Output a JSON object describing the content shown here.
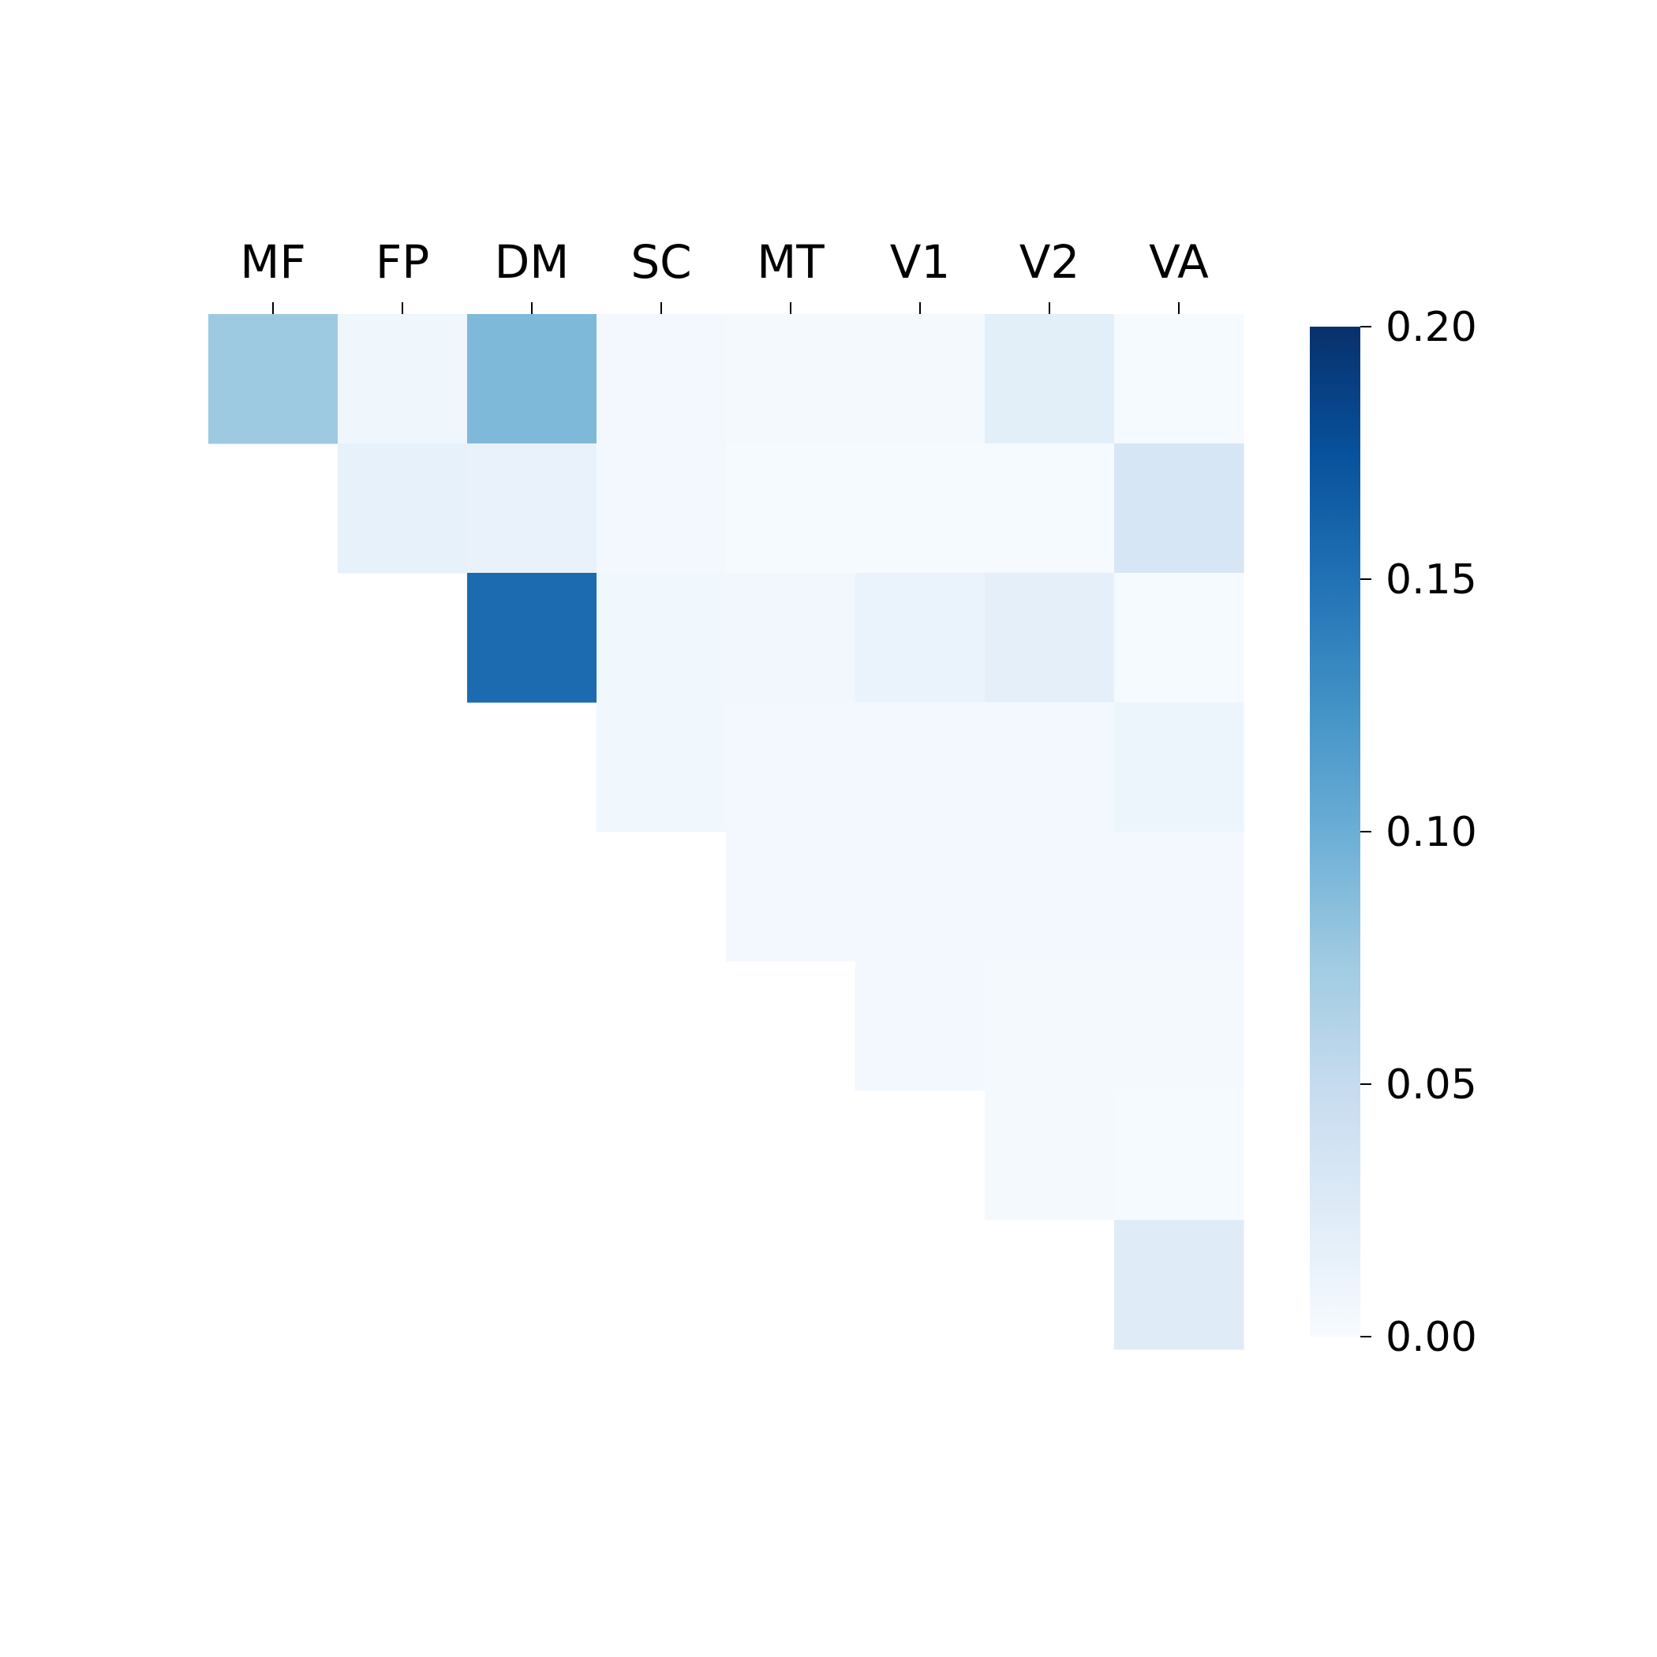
{
  "chart_data": {
    "type": "heatmap",
    "title": "",
    "xlabel": "",
    "ylabel": "",
    "x_tick_position": "top",
    "show_y_ticks": false,
    "categories": [
      "MF",
      "FP",
      "DM",
      "SC",
      "MT",
      "V1",
      "V2",
      "VA"
    ],
    "masked": "lower-triangle",
    "values": [
      [
        0.075,
        0.008,
        0.09,
        0.004,
        0.003,
        0.003,
        0.021,
        0.002
      ],
      [
        null,
        0.016,
        0.014,
        0.005,
        0.002,
        0.002,
        0.002,
        0.033
      ],
      [
        null,
        null,
        0.155,
        0.007,
        0.006,
        0.013,
        0.018,
        0.002
      ],
      [
        null,
        null,
        null,
        0.007,
        0.004,
        0.004,
        0.004,
        0.01
      ],
      [
        null,
        null,
        null,
        null,
        0.004,
        0.005,
        0.004,
        0.004
      ],
      [
        null,
        null,
        null,
        null,
        null,
        0.005,
        0.003,
        0.003
      ],
      [
        null,
        null,
        null,
        null,
        null,
        null,
        0.003,
        0.002
      ],
      [
        null,
        null,
        null,
        null,
        null,
        null,
        null,
        0.024
      ]
    ],
    "colormap": "Blues",
    "colorbar": {
      "vmin": 0.0,
      "vmax": 0.2,
      "ticks": [
        0.0,
        0.05,
        0.1,
        0.15,
        0.2
      ],
      "tick_labels": [
        "0.00",
        "0.05",
        "0.10",
        "0.15",
        "0.20"
      ],
      "position": "right"
    }
  }
}
